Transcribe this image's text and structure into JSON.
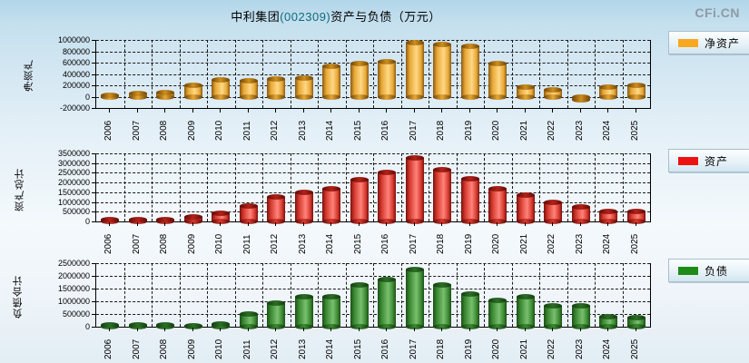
{
  "title": {
    "prefix": "中利集团",
    "code": "(002309)",
    "suffix": "资产与负债（万元）"
  },
  "watermark": "CFi.CN",
  "years": [
    "2006",
    "2007",
    "2008",
    "2009",
    "2010",
    "2011",
    "2012",
    "2013",
    "2014",
    "2015",
    "2016",
    "2017",
    "2018",
    "2019",
    "2020",
    "2021",
    "2022",
    "2023",
    "2024",
    "2025"
  ],
  "chart_data": [
    {
      "type": "bar",
      "name": "net-assets",
      "axis_title": "净资产",
      "legend": "净资产",
      "legend_color": "#F7A821",
      "ylim": [
        -200000,
        1000000
      ],
      "yticks": [
        1000000,
        800000,
        600000,
        400000,
        200000,
        0,
        -200000
      ],
      "grid": true,
      "legend_position": "right-top",
      "categories": [
        "2006",
        "2007",
        "2008",
        "2009",
        "2010",
        "2011",
        "2012",
        "2013",
        "2014",
        "2015",
        "2016",
        "2017",
        "2018",
        "2019",
        "2020",
        "2021",
        "2022",
        "2023",
        "2024",
        "2025"
      ],
      "values": [
        20000,
        50000,
        80000,
        195000,
        295000,
        280000,
        315000,
        330000,
        530000,
        580000,
        615000,
        960000,
        925000,
        890000,
        585000,
        165000,
        120000,
        -50000,
        175000,
        200000
      ],
      "colors": {
        "dark": "#8a5a14",
        "mid": "#e8a835",
        "light": "#ffd887",
        "cap": "#cf8f1d",
        "capDark": "#6e4408"
      }
    },
    {
      "type": "bar",
      "name": "total-assets",
      "axis_title": "资产总计",
      "legend": "资产",
      "legend_color": "#EE1111",
      "ylim": [
        0,
        3500000
      ],
      "yticks": [
        3500000,
        3000000,
        2500000,
        2000000,
        1500000,
        1000000,
        500000,
        0
      ],
      "grid": true,
      "legend_position": "right-top",
      "categories": [
        "2006",
        "2007",
        "2008",
        "2009",
        "2010",
        "2011",
        "2012",
        "2013",
        "2014",
        "2015",
        "2016",
        "2017",
        "2018",
        "2019",
        "2020",
        "2021",
        "2022",
        "2023",
        "2024",
        "2025"
      ],
      "values": [
        95000,
        110000,
        100000,
        225000,
        420000,
        780000,
        1250000,
        1510000,
        1700000,
        2170000,
        2520000,
        3280000,
        2640000,
        2200000,
        1660000,
        1370000,
        970000,
        740000,
        520000,
        520000
      ],
      "colors": {
        "dark": "#7a0f0c",
        "mid": "#d63a2f",
        "light": "#ff837a",
        "cap": "#b32219",
        "capDark": "#5e0a07"
      }
    },
    {
      "type": "bar",
      "name": "total-liabilities",
      "axis_title": "负债合计",
      "legend": "负债",
      "legend_color": "#1D8C17",
      "ylim": [
        0,
        2500000
      ],
      "yticks": [
        2500000,
        2000000,
        1500000,
        1000000,
        500000,
        0
      ],
      "grid": true,
      "legend_position": "right-top",
      "categories": [
        "2006",
        "2007",
        "2008",
        "2009",
        "2010",
        "2011",
        "2012",
        "2013",
        "2014",
        "2015",
        "2016",
        "2017",
        "2018",
        "2019",
        "2020",
        "2021",
        "2022",
        "2023",
        "2024",
        "2025"
      ],
      "values": [
        80000,
        85000,
        75000,
        40000,
        125000,
        500000,
        940000,
        1180000,
        1180000,
        1630000,
        1870000,
        2250000,
        1660000,
        1270000,
        1040000,
        1180000,
        830000,
        810000,
        390000,
        340000
      ],
      "colors": {
        "dark": "#1c4f17",
        "mid": "#3c8a33",
        "light": "#79bf6e",
        "cap": "#2c6f26",
        "capDark": "#143c10"
      }
    }
  ]
}
